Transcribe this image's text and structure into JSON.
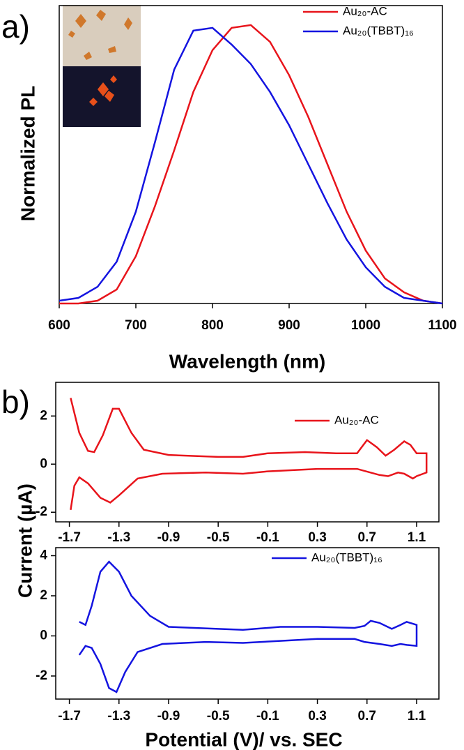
{
  "chart_data": [
    {
      "type": "line",
      "panel_label": "a)",
      "xlabel": "Wavelength (nm)",
      "ylabel": "Normalized PL",
      "x": [
        600,
        625,
        650,
        675,
        700,
        725,
        750,
        775,
        800,
        825,
        850,
        875,
        900,
        925,
        950,
        975,
        1000,
        1025,
        1050,
        1075,
        1100
      ],
      "series": [
        {
          "name": "Au₂₀-AC",
          "color": "#e8141b",
          "values": [
            0.0,
            0.0,
            0.01,
            0.05,
            0.17,
            0.35,
            0.55,
            0.76,
            0.91,
            0.99,
            1.0,
            0.94,
            0.82,
            0.67,
            0.5,
            0.33,
            0.19,
            0.09,
            0.04,
            0.01,
            0.0
          ]
        },
        {
          "name": "Au₂₀(TBBT)₁₆",
          "color": "#1414e0",
          "values": [
            0.01,
            0.02,
            0.06,
            0.15,
            0.33,
            0.58,
            0.84,
            0.98,
            0.99,
            0.93,
            0.86,
            0.76,
            0.64,
            0.5,
            0.36,
            0.23,
            0.13,
            0.06,
            0.02,
            0.01,
            0.0
          ]
        }
      ],
      "xlim": [
        600,
        1100
      ],
      "xticks": [
        600,
        700,
        800,
        900,
        1000,
        1100
      ],
      "ylim": [
        0,
        1.07
      ]
    },
    {
      "type": "line",
      "panel_label": "b)",
      "ylabel": "Current (µA)",
      "series": [
        {
          "name": "Au₂₀-AC",
          "color": "#e8141b",
          "x": [
            -1.69,
            -1.62,
            -1.55,
            -1.5,
            -1.43,
            -1.35,
            -1.3,
            -1.2,
            -1.1,
            -0.9,
            -0.5,
            -0.3,
            -0.1,
            0.2,
            0.45,
            0.62,
            0.7,
            0.78,
            0.85,
            0.92,
            1.0,
            1.05,
            1.1,
            1.18,
            1.18,
            1.1,
            1.07,
            1.0,
            0.95,
            0.87,
            0.8,
            0.62,
            0.3,
            -0.1,
            -0.3,
            -0.6,
            -0.95,
            -1.15,
            -1.3,
            -1.37,
            -1.45,
            -1.55,
            -1.62,
            -1.66,
            -1.69
          ],
          "values": [
            2.75,
            1.3,
            0.55,
            0.5,
            1.2,
            2.3,
            2.3,
            1.3,
            0.6,
            0.38,
            0.3,
            0.3,
            0.45,
            0.5,
            0.45,
            0.45,
            1.0,
            0.7,
            0.35,
            0.6,
            0.95,
            0.8,
            0.45,
            0.45,
            -0.35,
            -0.5,
            -0.6,
            -0.4,
            -0.35,
            -0.5,
            -0.45,
            -0.2,
            -0.2,
            -0.3,
            -0.4,
            -0.35,
            -0.4,
            -0.6,
            -1.3,
            -1.6,
            -1.4,
            -0.8,
            -0.55,
            -0.9,
            -1.9
          ]
        }
      ],
      "xlim": [
        -1.81,
        1.28
      ],
      "xticks": [
        -1.7,
        -1.3,
        -0.9,
        -0.5,
        -0.1,
        0.3,
        0.7,
        1.1
      ],
      "ylim": [
        -2.4,
        3.4
      ],
      "yticks": [
        -2,
        0,
        2
      ]
    },
    {
      "type": "line",
      "xlabel": "Potential (V)/ vs. SEC",
      "series": [
        {
          "name": "Au₂₀(TBBT)₁₆",
          "color": "#1414e0",
          "x": [
            -1.62,
            -1.57,
            -1.52,
            -1.45,
            -1.38,
            -1.3,
            -1.2,
            -1.05,
            -0.9,
            -0.5,
            -0.3,
            0.0,
            0.3,
            0.6,
            0.68,
            0.73,
            0.8,
            0.9,
            0.97,
            1.02,
            1.1,
            1.1,
            1.02,
            0.97,
            0.9,
            0.8,
            0.68,
            0.6,
            0.3,
            0.0,
            -0.3,
            -0.6,
            -0.95,
            -1.15,
            -1.25,
            -1.32,
            -1.38,
            -1.45,
            -1.52,
            -1.57,
            -1.62
          ],
          "values": [
            0.7,
            0.55,
            1.5,
            3.2,
            3.7,
            3.2,
            2.0,
            1.0,
            0.45,
            0.35,
            0.3,
            0.45,
            0.45,
            0.4,
            0.5,
            0.75,
            0.65,
            0.35,
            0.55,
            0.7,
            0.55,
            -0.5,
            -0.45,
            -0.4,
            -0.5,
            -0.4,
            -0.3,
            -0.15,
            -0.15,
            -0.25,
            -0.35,
            -0.3,
            -0.4,
            -0.8,
            -1.8,
            -2.8,
            -2.6,
            -1.4,
            -0.6,
            -0.5,
            -0.95
          ]
        }
      ],
      "xlim": [
        -1.81,
        1.28
      ],
      "xticks": [
        -1.7,
        -1.3,
        -0.9,
        -0.5,
        -0.1,
        0.3,
        0.7,
        1.1
      ],
      "ylim": [
        -3.15,
        4.4
      ],
      "yticks": [
        -2,
        0,
        2,
        4
      ]
    }
  ]
}
